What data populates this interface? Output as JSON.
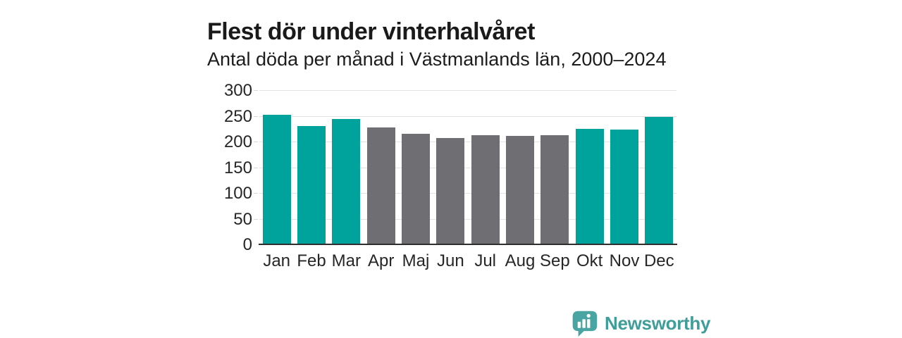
{
  "header": {
    "title": "Flest dör under vinterhalvåret",
    "subtitle": "Antal döda per månad i Västmanlands län, 2000–2024"
  },
  "chart_data": {
    "type": "bar",
    "title": "Flest dör under vinterhalvåret",
    "subtitle": "Antal döda per månad i Västmanlands län, 2000–2024",
    "categories": [
      "Jan",
      "Feb",
      "Mar",
      "Apr",
      "Maj",
      "Jun",
      "Jul",
      "Aug",
      "Sep",
      "Okt",
      "Nov",
      "Dec"
    ],
    "values": [
      252,
      230,
      244,
      228,
      215,
      207,
      212,
      211,
      212,
      224,
      223,
      248
    ],
    "bar_colors": [
      "#00a39b",
      "#00a39b",
      "#00a39b",
      "#6f6f73",
      "#6f6f73",
      "#6f6f73",
      "#6f6f73",
      "#6f6f73",
      "#6f6f73",
      "#00a39b",
      "#00a39b",
      "#00a39b"
    ],
    "highlight_color": "#00a39b",
    "default_color": "#6f6f73",
    "xlabel": "",
    "ylabel": "",
    "ylim": [
      0,
      300
    ],
    "yticks": [
      0,
      50,
      100,
      150,
      200,
      250,
      300
    ],
    "grid": true,
    "legend_position": "none"
  },
  "branding": {
    "name": "Newsworthy",
    "logo_icon": "newsworthy-speech-bubble-chart-icon"
  },
  "colors": {
    "bar_highlight": "#00a39b",
    "bar_default": "#6f6f73",
    "gridline": "#e2e2e2",
    "axis_line": "#2e2e2e",
    "text_dark": "#1a1a1a",
    "logo_teal": "#3f9d9a",
    "logo_bubble": "#48a5a2"
  }
}
